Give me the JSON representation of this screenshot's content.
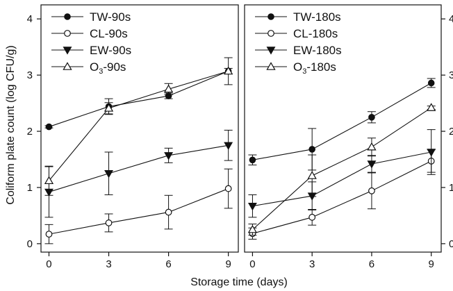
{
  "xlabel": "Storage time (days)",
  "ylabel": "Coliform plate count (log CFU/g)",
  "chart_data": [
    {
      "type": "line",
      "panel": "left",
      "x": [
        0,
        3,
        6,
        9
      ],
      "xticks": [
        "0",
        "3",
        "6",
        "9"
      ],
      "yticks": [
        "0",
        "1",
        "2",
        "3",
        "4"
      ],
      "xlim": [
        -0.4,
        9.5
      ],
      "ylim": [
        -0.15,
        4.25
      ],
      "ytick_side": "left",
      "legend_position": "top-left",
      "series": [
        {
          "name": "TW-90s",
          "label_main": "TW-90s",
          "label_sub": "",
          "label_after": "",
          "marker": "circle-filled",
          "values": [
            2.08,
            2.44,
            2.63,
            3.07
          ],
          "errors": [
            0.02,
            0.14,
            0.05,
            0.05
          ]
        },
        {
          "name": "CL-90s",
          "label_main": "CL-90s",
          "label_sub": "",
          "label_after": "",
          "marker": "circle-open",
          "values": [
            0.17,
            0.37,
            0.56,
            0.98
          ],
          "errors": [
            0.17,
            0.16,
            0.3,
            0.35
          ]
        },
        {
          "name": "EW-90s",
          "label_main": "EW-90s",
          "label_sub": "",
          "label_after": "",
          "marker": "triangle-down-filled",
          "values": [
            0.92,
            1.25,
            1.57,
            1.75
          ],
          "errors": [
            0.45,
            0.38,
            0.13,
            0.27
          ]
        },
        {
          "name": "O3-90s",
          "label_main": "O",
          "label_sub": "3",
          "label_after": "-90s",
          "marker": "triangle-up-open",
          "values": [
            1.12,
            2.41,
            2.75,
            3.07
          ],
          "errors": [
            0.26,
            0.1,
            0.1,
            0.24
          ]
        }
      ]
    },
    {
      "type": "line",
      "panel": "right",
      "x": [
        0,
        3,
        6,
        9
      ],
      "xticks": [
        "0",
        "3",
        "6",
        "9"
      ],
      "yticks": [
        "0",
        "1",
        "2",
        "3",
        "4"
      ],
      "xlim": [
        -0.4,
        9.5
      ],
      "ylim": [
        -0.15,
        4.25
      ],
      "ytick_side": "right",
      "legend_position": "top-left",
      "series": [
        {
          "name": "TW-180s",
          "label_main": "TW-180s",
          "label_sub": "",
          "label_after": "",
          "marker": "circle-filled",
          "values": [
            1.49,
            1.68,
            2.25,
            2.86
          ],
          "errors": [
            0.09,
            0.37,
            0.1,
            0.08
          ]
        },
        {
          "name": "CL-180s",
          "label_main": "CL-180s",
          "label_sub": "",
          "label_after": "",
          "marker": "circle-open",
          "values": [
            0.18,
            0.47,
            0.94,
            1.47
          ],
          "errors": [
            0.1,
            0.14,
            0.32,
            0.2
          ]
        },
        {
          "name": "EW-180s",
          "label_main": "EW-180s",
          "label_sub": "",
          "label_after": "",
          "marker": "triangle-down-filled",
          "values": [
            0.67,
            0.85,
            1.42,
            1.63
          ],
          "errors": [
            0.2,
            0.25,
            0.15,
            0.4
          ]
        },
        {
          "name": "O3-180s",
          "label_main": "O",
          "label_sub": "3",
          "label_after": "-180s",
          "marker": "triangle-up-open",
          "values": [
            0.25,
            1.21,
            1.72,
            2.42
          ],
          "errors": [
            0.1,
            0.37,
            0.16,
            0.03
          ]
        }
      ]
    }
  ]
}
